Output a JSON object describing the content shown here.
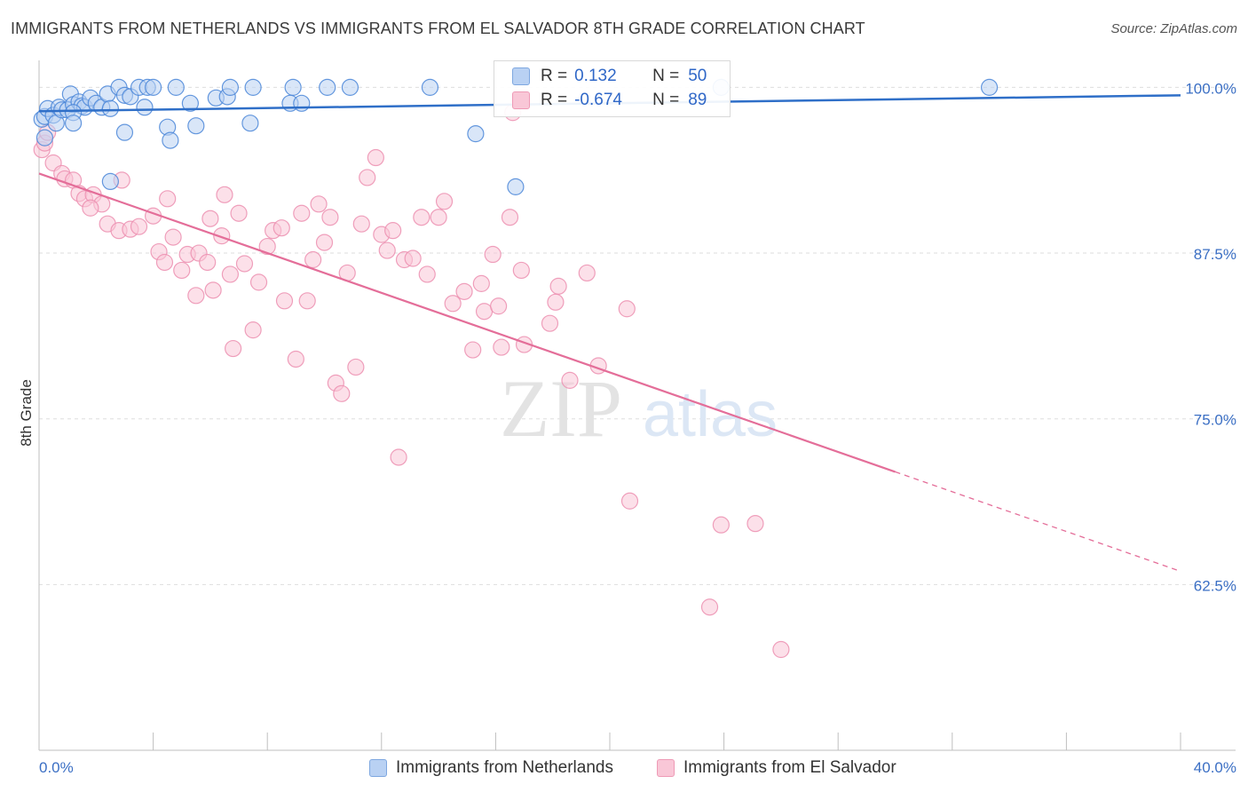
{
  "title": "IMMIGRANTS FROM NETHERLANDS VS IMMIGRANTS FROM EL SALVADOR 8TH GRADE CORRELATION CHART",
  "source": "Source: ZipAtlas.com",
  "watermark": {
    "zip": "ZIP",
    "atlas": "atlas"
  },
  "legend": {
    "rows": [
      {
        "r_label": "R =",
        "r_value": "0.132",
        "n_label": "N =",
        "n_value": "50"
      },
      {
        "r_label": "R =",
        "r_value": "-0.674",
        "n_label": "N =",
        "n_value": "89"
      }
    ]
  },
  "colors": {
    "blue": "#4a86d8",
    "blue_fill": "#b9d1f3",
    "blue_line": "#2f6fc8",
    "pink": "#ec8fb0",
    "pink_fill": "#f9c7d7",
    "pink_line": "#e46e99",
    "axis_label": "#3b6fc4"
  },
  "chart_data": {
    "type": "scatter",
    "ylabel": "8th Grade",
    "xlabel": "",
    "xlim": [
      0,
      40
    ],
    "ylim": [
      50,
      101.7
    ],
    "x_tick_labels": [
      "0.0%",
      "40.0%"
    ],
    "y_ticks": [
      100,
      87.5,
      75,
      62.5
    ],
    "y_tick_labels": [
      "100.0%",
      "87.5%",
      "75.0%",
      "62.5%"
    ],
    "grid": "horizontal dashed",
    "series": [
      {
        "name": "Immigrants from Netherlands",
        "color": "#4a86d8",
        "R": 0.132,
        "N": 50,
        "trend": {
          "x": [
            0,
            40
          ],
          "y": [
            98.2,
            99.4
          ]
        },
        "points": [
          [
            0.1,
            97.6
          ],
          [
            0.2,
            97.8
          ],
          [
            0.3,
            98.4
          ],
          [
            0.5,
            97.9
          ],
          [
            0.6,
            97.3
          ],
          [
            0.7,
            98.5
          ],
          [
            0.8,
            98.3
          ],
          [
            1.0,
            98.3
          ],
          [
            1.1,
            99.5
          ],
          [
            1.2,
            98.7
          ],
          [
            1.4,
            98.9
          ],
          [
            1.5,
            98.6
          ],
          [
            1.6,
            98.5
          ],
          [
            1.8,
            99.2
          ],
          [
            1.2,
            98.1
          ],
          [
            2.0,
            98.8
          ],
          [
            2.2,
            98.5
          ],
          [
            2.4,
            99.5
          ],
          [
            2.5,
            98.4
          ],
          [
            2.8,
            100.0
          ],
          [
            3.0,
            99.4
          ],
          [
            3.2,
            99.3
          ],
          [
            3.5,
            100.0
          ],
          [
            3.8,
            100.0
          ],
          [
            4.0,
            100.0
          ],
          [
            5.3,
            98.8
          ],
          [
            6.2,
            99.2
          ],
          [
            6.6,
            99.3
          ],
          [
            6.7,
            100.0
          ],
          [
            7.5,
            100.0
          ],
          [
            8.8,
            98.8
          ],
          [
            8.9,
            100.0
          ],
          [
            9.2,
            98.8
          ],
          [
            10.1,
            100.0
          ],
          [
            10.9,
            100.0
          ],
          [
            13.7,
            100.0
          ],
          [
            0.2,
            96.2
          ],
          [
            1.2,
            97.3
          ],
          [
            3.0,
            96.6
          ],
          [
            4.5,
            97.0
          ],
          [
            4.6,
            96.0
          ],
          [
            5.5,
            97.1
          ],
          [
            7.4,
            97.3
          ],
          [
            15.3,
            96.5
          ],
          [
            16.7,
            92.5
          ],
          [
            2.5,
            92.9
          ],
          [
            23.9,
            100.0
          ],
          [
            33.3,
            100.0
          ],
          [
            4.8,
            100.0
          ],
          [
            3.7,
            98.5
          ]
        ]
      },
      {
        "name": "Immigrants from El Salvador",
        "color": "#ec8fb0",
        "R": -0.674,
        "N": 89,
        "trend": {
          "x": [
            0,
            30
          ],
          "y": [
            93.5,
            71.0
          ]
        },
        "trend_dashed": {
          "x": [
            30,
            40
          ],
          "y": [
            71.0,
            63.5
          ]
        },
        "points": [
          [
            0.1,
            95.3
          ],
          [
            0.2,
            95.8
          ],
          [
            0.3,
            96.6
          ],
          [
            0.5,
            94.3
          ],
          [
            0.8,
            93.5
          ],
          [
            0.9,
            93.1
          ],
          [
            1.2,
            93.0
          ],
          [
            1.4,
            92.0
          ],
          [
            1.6,
            91.6
          ],
          [
            1.9,
            91.9
          ],
          [
            2.2,
            91.2
          ],
          [
            1.8,
            90.9
          ],
          [
            2.4,
            89.7
          ],
          [
            2.8,
            89.2
          ],
          [
            3.2,
            89.3
          ],
          [
            3.5,
            89.5
          ],
          [
            2.9,
            93.0
          ],
          [
            4.0,
            90.3
          ],
          [
            4.2,
            87.6
          ],
          [
            4.4,
            86.8
          ],
          [
            4.5,
            91.6
          ],
          [
            4.7,
            88.7
          ],
          [
            5.0,
            86.2
          ],
          [
            5.2,
            87.4
          ],
          [
            5.5,
            84.3
          ],
          [
            5.6,
            87.5
          ],
          [
            5.9,
            86.8
          ],
          [
            6.0,
            90.1
          ],
          [
            6.1,
            84.7
          ],
          [
            6.4,
            88.8
          ],
          [
            6.5,
            91.9
          ],
          [
            6.7,
            85.9
          ],
          [
            6.8,
            80.3
          ],
          [
            7.0,
            90.5
          ],
          [
            7.2,
            86.7
          ],
          [
            7.5,
            81.7
          ],
          [
            7.7,
            85.3
          ],
          [
            8.0,
            88.0
          ],
          [
            8.2,
            89.2
          ],
          [
            8.5,
            89.4
          ],
          [
            8.6,
            83.9
          ],
          [
            9.0,
            79.5
          ],
          [
            9.2,
            90.5
          ],
          [
            9.4,
            83.9
          ],
          [
            9.6,
            87.0
          ],
          [
            9.8,
            91.2
          ],
          [
            10.0,
            88.3
          ],
          [
            10.2,
            90.2
          ],
          [
            10.4,
            77.7
          ],
          [
            10.6,
            76.9
          ],
          [
            10.8,
            86.0
          ],
          [
            11.1,
            78.9
          ],
          [
            11.3,
            89.7
          ],
          [
            11.5,
            93.2
          ],
          [
            11.8,
            94.7
          ],
          [
            12.0,
            88.9
          ],
          [
            12.2,
            87.7
          ],
          [
            12.4,
            89.2
          ],
          [
            12.6,
            72.1
          ],
          [
            12.8,
            87.0
          ],
          [
            13.1,
            87.1
          ],
          [
            13.4,
            90.2
          ],
          [
            13.6,
            85.9
          ],
          [
            14.0,
            90.2
          ],
          [
            14.2,
            91.4
          ],
          [
            14.5,
            83.7
          ],
          [
            14.9,
            84.6
          ],
          [
            15.2,
            80.2
          ],
          [
            15.5,
            85.2
          ],
          [
            15.6,
            83.1
          ],
          [
            15.9,
            87.4
          ],
          [
            16.1,
            83.5
          ],
          [
            16.2,
            80.4
          ],
          [
            16.5,
            90.2
          ],
          [
            16.6,
            98.1
          ],
          [
            16.9,
            86.2
          ],
          [
            17.0,
            80.6
          ],
          [
            17.9,
            82.2
          ],
          [
            18.1,
            83.8
          ],
          [
            18.2,
            85.0
          ],
          [
            18.6,
            77.9
          ],
          [
            19.2,
            86.0
          ],
          [
            19.6,
            79.0
          ],
          [
            20.6,
            83.3
          ],
          [
            20.7,
            68.8
          ],
          [
            23.9,
            67.0
          ],
          [
            25.1,
            67.1
          ],
          [
            23.5,
            60.8
          ],
          [
            26.0,
            57.6
          ]
        ]
      }
    ]
  }
}
